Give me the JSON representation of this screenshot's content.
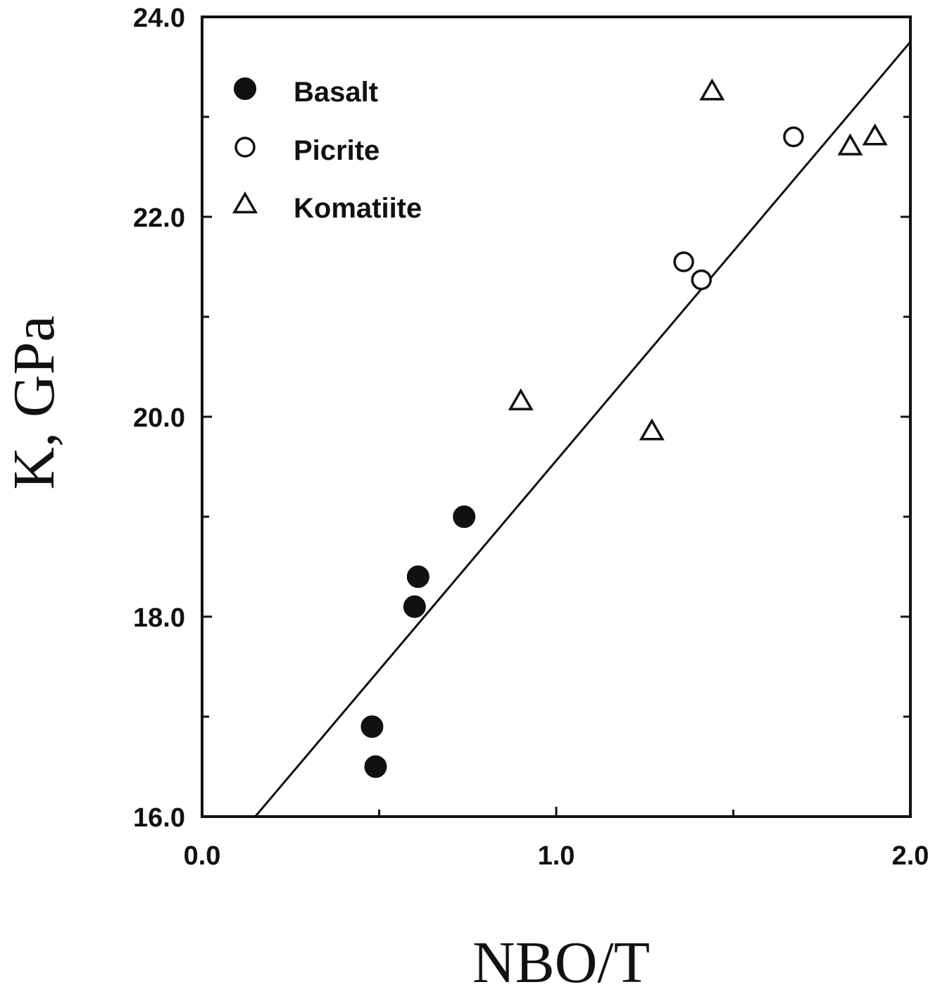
{
  "chart_data": {
    "type": "scatter",
    "title": "",
    "xlabel": "NBO/T",
    "ylabel": "K, GPa",
    "xlim": [
      0.0,
      2.0
    ],
    "ylim": [
      16.0,
      24.0
    ],
    "x_ticks": [
      "0.0",
      "1.0",
      "2.0"
    ],
    "y_ticks": [
      "16.0",
      "18.0",
      "20.0",
      "22.0",
      "24.0"
    ],
    "grid": false,
    "legend": "top-left",
    "series": [
      {
        "name": "Basalt",
        "marker": "filled-circle",
        "points": [
          {
            "x": 0.48,
            "y": 16.9
          },
          {
            "x": 0.49,
            "y": 16.5
          },
          {
            "x": 0.6,
            "y": 18.1
          },
          {
            "x": 0.61,
            "y": 18.4
          },
          {
            "x": 0.74,
            "y": 19.0
          }
        ]
      },
      {
        "name": "Picrite",
        "marker": "open-circle",
        "points": [
          {
            "x": 1.36,
            "y": 21.55
          },
          {
            "x": 1.41,
            "y": 21.37
          },
          {
            "x": 1.67,
            "y": 22.8
          }
        ]
      },
      {
        "name": "Komatiite",
        "marker": "open-triangle",
        "points": [
          {
            "x": 0.9,
            "y": 20.15
          },
          {
            "x": 1.27,
            "y": 19.85
          },
          {
            "x": 1.44,
            "y": 23.25
          },
          {
            "x": 1.83,
            "y": 22.7
          },
          {
            "x": 1.9,
            "y": 22.8
          }
        ]
      }
    ],
    "fit_line": {
      "points": [
        {
          "x": 0.15,
          "y": 16.0
        },
        {
          "x": 2.0,
          "y": 23.75
        }
      ]
    }
  }
}
